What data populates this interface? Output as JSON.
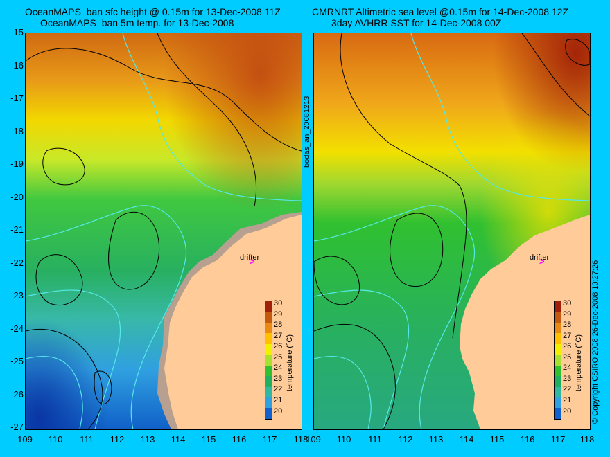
{
  "titles": {
    "left_line1": "OceanMAPS_ban sfc height @ 0.15m for 13-Dec-2008 11Z",
    "left_line2": "OceanMAPS_ban 5m temp. for 13-Dec-2008",
    "right_line1": "CMRNRT Altimetric sea level  @0.15m  for 14-Dec-2008 12Z",
    "right_line2": "3day AVHRR SST for 14-Dec-2008 00Z"
  },
  "y_ticks": [
    "-15",
    "-16",
    "-17",
    "-18",
    "-19",
    "-20",
    "-21",
    "-22",
    "-23",
    "-24",
    "-25",
    "-26",
    "-27"
  ],
  "x_ticks": [
    "109",
    "110",
    "111",
    "112",
    "113",
    "114",
    "115",
    "116",
    "117",
    "118"
  ],
  "side_label_middle": "bodas_an_20081213",
  "side_label_right": "© Copyright CSIRO 2008   26-Dec-2008 10:27:26",
  "drifter": {
    "label": "drifter",
    "mark": ">",
    "color": "#ff00ff"
  },
  "colorbar": {
    "title": "temperature (°C)",
    "ticks": [
      "30",
      "29",
      "28",
      "27",
      "26",
      "25",
      "24",
      "23",
      "22",
      "21",
      "20"
    ],
    "colors": [
      "#a0200a",
      "#c45a10",
      "#e88a14",
      "#ffc000",
      "#f0f000",
      "#a8e030",
      "#30c030",
      "#20b060",
      "#30b8a0",
      "#30a0e0",
      "#1060d0",
      "#000080"
    ]
  },
  "colors": {
    "land": "#ffcc99",
    "land_mask": "#b8a090",
    "contour": "#000000",
    "bathymetry": "#55e8e8",
    "background": "#00ccff"
  }
}
